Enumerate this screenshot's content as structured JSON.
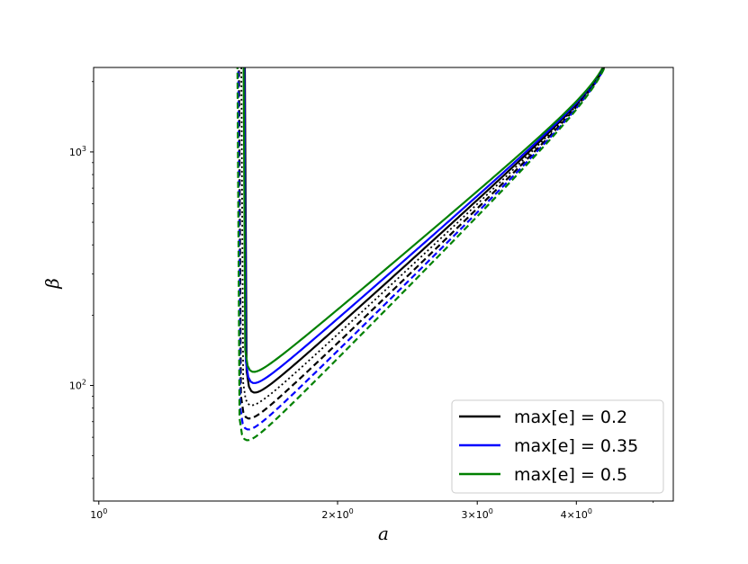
{
  "chart_data": {
    "type": "line",
    "xlabel": "a",
    "ylabel": "β",
    "xscale": "log",
    "yscale": "log",
    "xlim": [
      0.985,
      5.3
    ],
    "ylim": [
      32,
      2300
    ],
    "x_ticks": [
      {
        "value": 1,
        "label_base": "10",
        "label_exp": "0"
      },
      {
        "value": 2,
        "label_base": "2×10",
        "label_exp": "0"
      },
      {
        "value": 3,
        "label_base": "3×10",
        "label_exp": "0"
      },
      {
        "value": 4,
        "label_base": "4×10",
        "label_exp": "0"
      }
    ],
    "y_ticks": [
      {
        "value": 100,
        "label_base": "10",
        "label_exp": "2"
      },
      {
        "value": 1000,
        "label_base": "10",
        "label_exp": "3"
      }
    ],
    "legend": {
      "placement": "lower right",
      "entries": [
        {
          "label": "max[e] = 0.2",
          "color": "#000000"
        },
        {
          "label": "max[e] = 0.35",
          "color": "#0000ff"
        },
        {
          "label": "max[e] = 0.5",
          "color": "#008000"
        }
      ]
    },
    "series": [
      {
        "color": "#000000",
        "dash": "solid",
        "x_left": 1.525,
        "x_min": 1.73,
        "y_min": 116,
        "x_right": 4.6,
        "y_right": 2300
      },
      {
        "color": "#0000ff",
        "dash": "solid",
        "x_left": 1.522,
        "x_min": 1.725,
        "y_min": 126,
        "x_right": 4.6,
        "y_right": 2300
      },
      {
        "color": "#008000",
        "dash": "solid",
        "x_left": 1.519,
        "x_min": 1.72,
        "y_min": 139,
        "x_right": 4.6,
        "y_right": 2300
      },
      {
        "color": "#000000",
        "dash": "dotted",
        "x_left": 1.51,
        "x_min": 1.725,
        "y_min": 105,
        "x_right": 4.6,
        "y_right": 2300
      },
      {
        "color": "#000000",
        "dash": "dashed",
        "x_left": 1.5,
        "x_min": 1.72,
        "y_min": 94,
        "x_right": 4.6,
        "y_right": 2300
      },
      {
        "color": "#0000ff",
        "dash": "dashed",
        "x_left": 1.497,
        "x_min": 1.715,
        "y_min": 85,
        "x_right": 4.6,
        "y_right": 2300
      },
      {
        "color": "#008000",
        "dash": "dashed",
        "x_left": 1.494,
        "x_min": 1.71,
        "y_min": 77,
        "x_right": 4.6,
        "y_right": 2300
      }
    ]
  }
}
